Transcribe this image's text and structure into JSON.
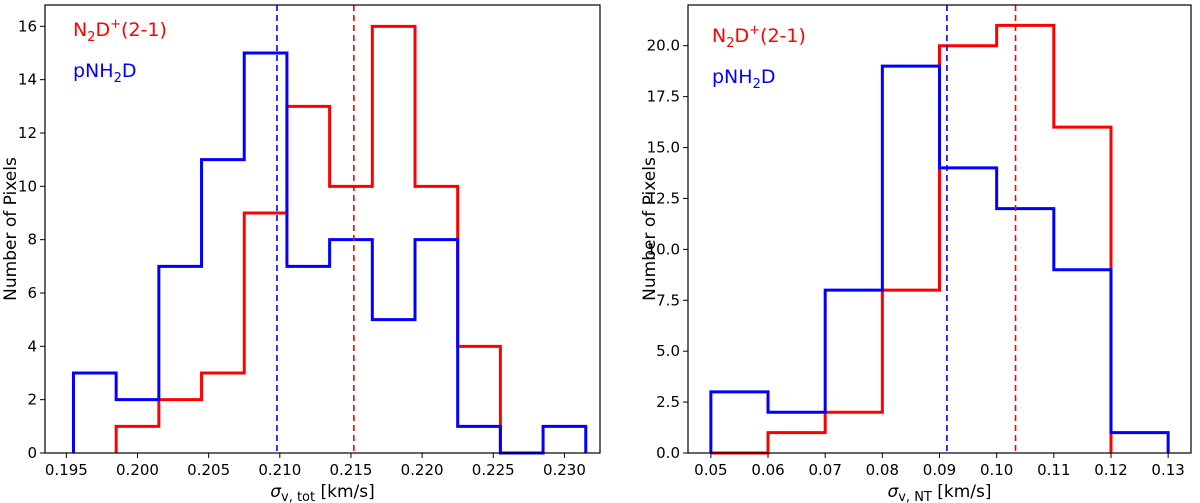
{
  "chart_data": [
    {
      "type": "histogram",
      "xlabel": {
        "symbol": "σ",
        "sub": "v, tot",
        "unit": "[km/s]"
      },
      "ylabel": "Number of Pixels",
      "xlim": [
        0.1935,
        0.2325
      ],
      "ylim": [
        0,
        16.8
      ],
      "xticks": [
        0.195,
        0.2,
        0.205,
        0.21,
        0.215,
        0.22,
        0.225,
        0.23
      ],
      "xtick_labels": [
        "0.195",
        "0.200",
        "0.205",
        "0.210",
        "0.215",
        "0.220",
        "0.225",
        "0.230"
      ],
      "yticks": [
        0,
        2,
        4,
        6,
        8,
        10,
        12,
        14,
        16
      ],
      "ytick_labels": [
        "0",
        "2",
        "4",
        "6",
        "8",
        "10",
        "12",
        "14",
        "16"
      ],
      "legend": {
        "placement": "top-left"
      },
      "series": [
        {
          "name": "N2D+(2-1)",
          "label": {
            "base": "N",
            "sub": "2",
            "mid": "D",
            "sup": "+",
            "tail": "(2-1)"
          },
          "color": "#ff0000",
          "edges": [
            0.1985,
            0.2015,
            0.2045,
            0.2075,
            0.2105,
            0.2135,
            0.2165,
            0.2195,
            0.2225,
            0.2255
          ],
          "counts": [
            1,
            2,
            3,
            9,
            13,
            10,
            16,
            10,
            4
          ],
          "mean": 0.2152
        },
        {
          "name": "pNH2D",
          "label": {
            "base": "pNH",
            "sub": "2",
            "mid": "D",
            "sup": "",
            "tail": ""
          },
          "color": "#0000ff",
          "edges": [
            0.1955,
            0.1985,
            0.2015,
            0.2045,
            0.2075,
            0.2105,
            0.2135,
            0.2165,
            0.2195,
            0.2225,
            0.2255,
            0.2285,
            0.2315
          ],
          "counts": [
            3,
            2,
            7,
            11,
            15,
            7,
            8,
            5,
            8,
            1,
            0,
            1
          ],
          "mean": 0.2098
        }
      ]
    },
    {
      "type": "histogram",
      "xlabel": {
        "symbol": "σ",
        "sub": "v, NT",
        "unit": "[km/s]"
      },
      "ylabel": "Number of Pixels",
      "xlim": [
        0.046,
        0.134
      ],
      "ylim": [
        0,
        22.0
      ],
      "xticks": [
        0.05,
        0.06,
        0.07,
        0.08,
        0.09,
        0.1,
        0.11,
        0.12,
        0.13
      ],
      "xtick_labels": [
        "0.05",
        "0.06",
        "0.07",
        "0.08",
        "0.09",
        "0.10",
        "0.11",
        "0.12",
        "0.13"
      ],
      "yticks": [
        0,
        2.5,
        5,
        7.5,
        10,
        12.5,
        15,
        17.5,
        20
      ],
      "ytick_labels": [
        "0.0",
        "2.5",
        "5.0",
        "7.5",
        "10.0",
        "12.5",
        "15.0",
        "17.5",
        "20.0"
      ],
      "legend": {
        "placement": "top-left"
      },
      "series": [
        {
          "name": "N2D+(2-1)",
          "label": {
            "base": "N",
            "sub": "2",
            "mid": "D",
            "sup": "+",
            "tail": "(2-1)"
          },
          "color": "#ff0000",
          "edges": [
            0.05,
            0.06,
            0.07,
            0.08,
            0.09,
            0.1,
            0.11,
            0.12
          ],
          "counts": [
            0,
            1,
            2,
            8,
            20,
            21,
            16
          ],
          "mean": 0.1033
        },
        {
          "name": "pNH2D",
          "label": {
            "base": "pNH",
            "sub": "2",
            "mid": "D",
            "sup": "",
            "tail": ""
          },
          "color": "#0000ff",
          "edges": [
            0.05,
            0.06,
            0.07,
            0.08,
            0.09,
            0.1,
            0.11,
            0.12,
            0.13
          ],
          "counts": [
            3,
            2,
            8,
            19,
            14,
            12,
            9,
            1
          ],
          "mean": 0.0913
        }
      ]
    }
  ]
}
